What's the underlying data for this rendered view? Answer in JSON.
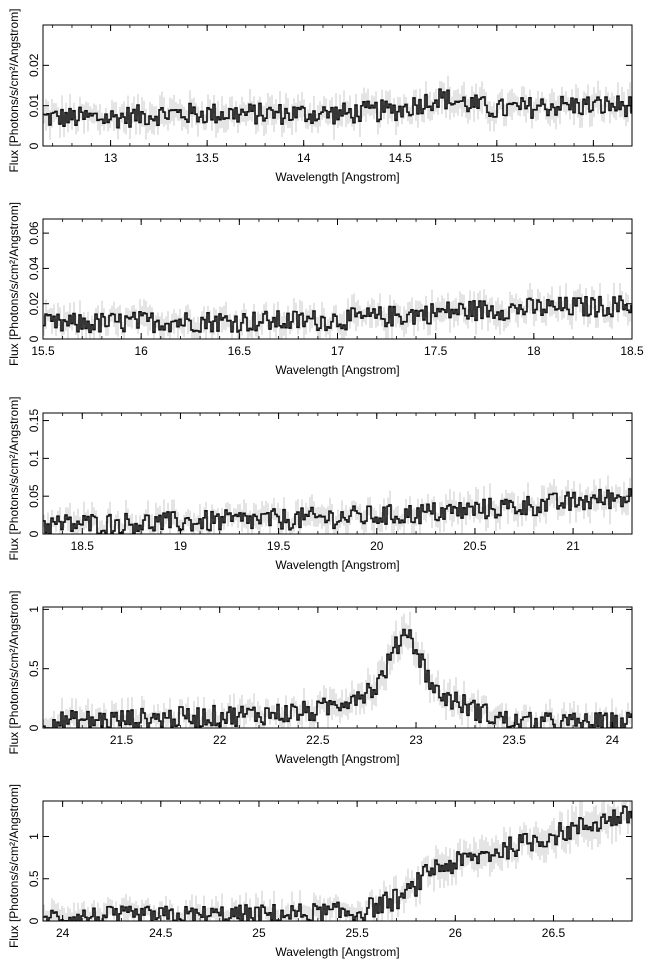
{
  "chart_data": [
    {
      "type": "line",
      "subtype": "step-with-errorbars",
      "xlabel": "Wavelength [Angstrom]",
      "ylabel": "Flux [Photons/s/cm²/Angstrom]",
      "xlim": [
        12.65,
        15.7
      ],
      "ylim": [
        0,
        0.03
      ],
      "xticks": [
        {
          "value": 13,
          "label": "13"
        },
        {
          "value": 13.5,
          "label": "13.5"
        },
        {
          "value": 14,
          "label": "14"
        },
        {
          "value": 14.5,
          "label": "14.5"
        },
        {
          "value": 15,
          "label": "15"
        },
        {
          "value": 15.5,
          "label": "15.5"
        }
      ],
      "yticks": [
        {
          "value": 0,
          "label": "0"
        },
        {
          "value": 0.01,
          "label": "0.01"
        },
        {
          "value": 0.02,
          "label": "0.02"
        }
      ],
      "series": [
        {
          "x": [
            12.7,
            13.0,
            13.3,
            13.6,
            13.9,
            14.2,
            14.5,
            14.7,
            15.0,
            15.3,
            15.7
          ],
          "y": [
            0.007,
            0.007,
            0.008,
            0.008,
            0.008,
            0.008,
            0.009,
            0.012,
            0.009,
            0.01,
            0.01
          ]
        }
      ]
    },
    {
      "type": "line",
      "subtype": "step-with-errorbars",
      "xlabel": "Wavelength [Angstrom]",
      "ylabel": "Flux [Photons/s/cm²/Angstrom]",
      "xlim": [
        15.5,
        18.5
      ],
      "ylim": [
        0,
        0.068
      ],
      "xticks": [
        {
          "value": 15.5,
          "label": "15.5"
        },
        {
          "value": 16,
          "label": "16"
        },
        {
          "value": 16.5,
          "label": "16.5"
        },
        {
          "value": 17,
          "label": "17"
        },
        {
          "value": 17.5,
          "label": "17.5"
        },
        {
          "value": 18,
          "label": "18"
        },
        {
          "value": 18.5,
          "label": "18.5"
        }
      ],
      "yticks": [
        {
          "value": 0,
          "label": "0"
        },
        {
          "value": 0.02,
          "label": "0.02"
        },
        {
          "value": 0.04,
          "label": "0.04"
        },
        {
          "value": 0.06,
          "label": "0.06"
        }
      ],
      "series": [
        {
          "x": [
            15.5,
            15.8,
            16.1,
            16.4,
            16.7,
            17.0,
            17.3,
            17.6,
            17.9,
            18.2,
            18.5
          ],
          "y": [
            0.008,
            0.009,
            0.01,
            0.01,
            0.01,
            0.011,
            0.013,
            0.016,
            0.017,
            0.018,
            0.019
          ]
        }
      ]
    },
    {
      "type": "line",
      "subtype": "step-with-errorbars",
      "xlabel": "Wavelength [Angstrom]",
      "ylabel": "Flux [Photons/s/cm²/Angstrom]",
      "xlim": [
        18.3,
        21.3
      ],
      "ylim": [
        0,
        0.16
      ],
      "xticks": [
        {
          "value": 18.5,
          "label": "18.5"
        },
        {
          "value": 19,
          "label": "19"
        },
        {
          "value": 19.5,
          "label": "19.5"
        },
        {
          "value": 20,
          "label": "20"
        },
        {
          "value": 20.5,
          "label": "20.5"
        },
        {
          "value": 21,
          "label": "21"
        }
      ],
      "yticks": [
        {
          "value": 0,
          "label": "0"
        },
        {
          "value": 0.05,
          "label": "0.05"
        },
        {
          "value": 0.1,
          "label": "0.1"
        },
        {
          "value": 0.15,
          "label": "0.15"
        }
      ],
      "series": [
        {
          "x": [
            18.3,
            18.6,
            18.9,
            19.2,
            19.5,
            19.8,
            20.1,
            20.4,
            20.7,
            21.0,
            21.3
          ],
          "y": [
            0.012,
            0.014,
            0.015,
            0.017,
            0.019,
            0.022,
            0.025,
            0.03,
            0.036,
            0.042,
            0.05
          ]
        }
      ]
    },
    {
      "type": "line",
      "subtype": "step-with-errorbars",
      "xlabel": "Wavelength [Angstrom]",
      "ylabel": "Flux [Photons/s/cm²/Angstrom]",
      "xlim": [
        21.1,
        24.1
      ],
      "ylim": [
        0,
        1.02
      ],
      "xticks": [
        {
          "value": 21.5,
          "label": "21.5"
        },
        {
          "value": 22,
          "label": "22"
        },
        {
          "value": 22.5,
          "label": "22.5"
        },
        {
          "value": 23,
          "label": "23"
        },
        {
          "value": 23.5,
          "label": "23.5"
        },
        {
          "value": 24,
          "label": "24"
        }
      ],
      "yticks": [
        {
          "value": 0,
          "label": "0"
        },
        {
          "value": 0.5,
          "label": "0.5"
        },
        {
          "value": 1,
          "label": "1"
        }
      ],
      "series": [
        {
          "x": [
            21.1,
            21.5,
            22.0,
            22.5,
            22.8,
            22.95,
            23.1,
            23.35,
            23.5,
            24.0,
            24.1
          ],
          "y": [
            0.05,
            0.07,
            0.1,
            0.14,
            0.35,
            0.85,
            0.3,
            0.12,
            0.04,
            0.04,
            0.05
          ]
        }
      ]
    },
    {
      "type": "line",
      "subtype": "step-with-errorbars",
      "xlabel": "Wavelength [Angstrom]",
      "ylabel": "Flux [Photons/s/cm²/Angstrom]",
      "xlim": [
        23.9,
        26.9
      ],
      "ylim": [
        0,
        1.42
      ],
      "xticks": [
        {
          "value": 24,
          "label": "24"
        },
        {
          "value": 24.5,
          "label": "24.5"
        },
        {
          "value": 25,
          "label": "25"
        },
        {
          "value": 25.5,
          "label": "25.5"
        },
        {
          "value": 26,
          "label": "26"
        },
        {
          "value": 26.5,
          "label": "26.5"
        }
      ],
      "yticks": [
        {
          "value": 0,
          "label": "0"
        },
        {
          "value": 0.5,
          "label": "0.5"
        },
        {
          "value": 1,
          "label": "1"
        }
      ],
      "series": [
        {
          "x": [
            23.9,
            24.5,
            25.0,
            25.5,
            25.75,
            25.88,
            26.0,
            26.4,
            26.8,
            26.9
          ],
          "y": [
            0.04,
            0.05,
            0.07,
            0.1,
            0.3,
            0.62,
            0.68,
            0.95,
            1.22,
            1.25
          ]
        }
      ]
    }
  ]
}
